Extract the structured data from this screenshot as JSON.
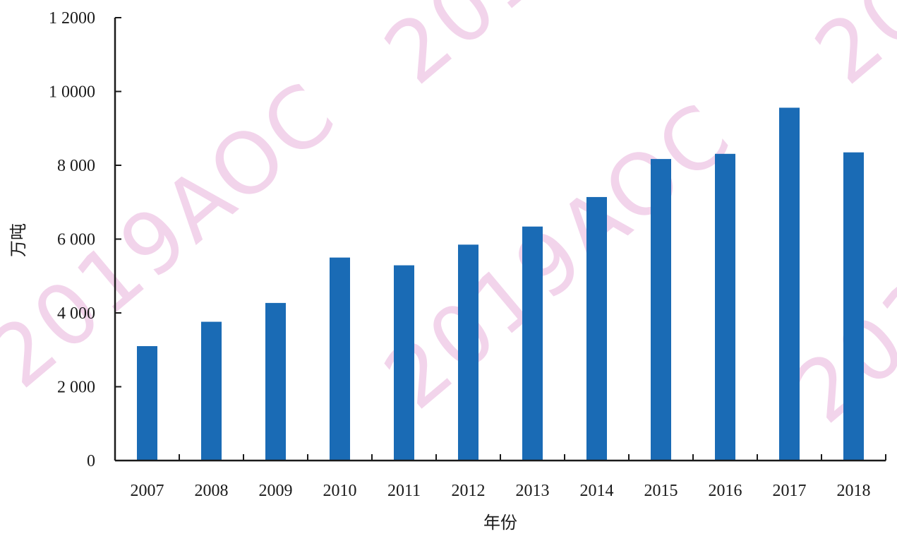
{
  "watermark": "2019AOC",
  "colors": {
    "bar": "#1a6bb5",
    "axis": "#1a1a1a"
  },
  "chart_data": {
    "type": "bar",
    "categories": [
      "2007",
      "2008",
      "2009",
      "2010",
      "2011",
      "2012",
      "2013",
      "2014",
      "2015",
      "2016",
      "2017",
      "2018"
    ],
    "values": [
      3100,
      3760,
      4270,
      5500,
      5290,
      5850,
      6340,
      7140,
      8170,
      8310,
      9560,
      8350
    ],
    "xlabel": "年份",
    "ylabel": "万吨",
    "ylim": [
      0,
      12000
    ],
    "yticks": [
      0,
      2000,
      4000,
      6000,
      8000,
      10000,
      12000
    ],
    "ytick_labels": [
      "0",
      "2 000",
      "4 000",
      "6 000",
      "8 000",
      "1 0000",
      "1 2000"
    ],
    "grid": false,
    "legend": "none"
  }
}
